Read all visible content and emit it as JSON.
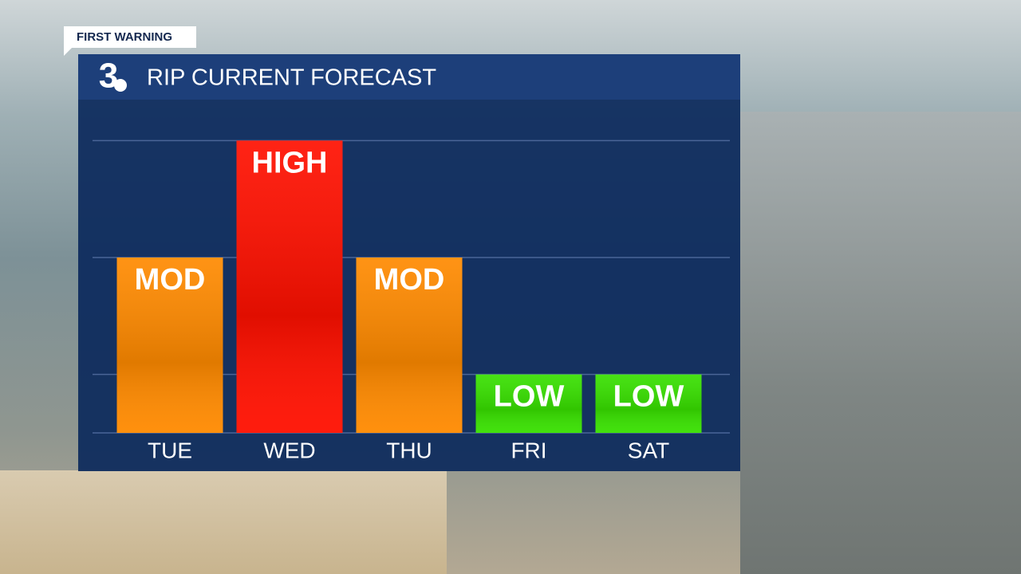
{
  "badge": "FIRST WARNING",
  "logo": "3",
  "chart_data": {
    "type": "bar",
    "title": "RIP CURRENT FORECAST",
    "categories": [
      "TUE",
      "WED",
      "THU",
      "FRI",
      "SAT"
    ],
    "values": [
      3,
      5,
      3,
      1,
      1
    ],
    "value_labels": [
      "MOD",
      "HIGH",
      "MOD",
      "LOW",
      "LOW"
    ],
    "colors": [
      "#ff8a00",
      "#ff1000",
      "#ff8a00",
      "#38e000",
      "#38e000"
    ],
    "ylim": [
      0,
      5.7
    ],
    "yticks": [
      1,
      3,
      5
    ],
    "grid": true
  }
}
